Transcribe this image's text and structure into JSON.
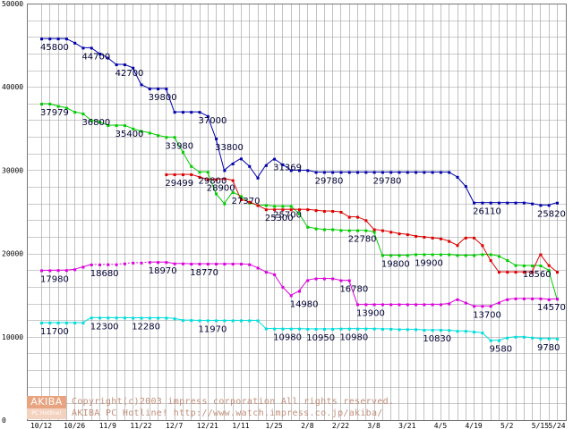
{
  "chart_data": {
    "type": "line",
    "ylim": [
      0,
      50000
    ],
    "yticks": [
      0,
      10000,
      20000,
      30000,
      40000,
      50000
    ],
    "x_labels": [
      "10/12",
      "10/26",
      "11/9",
      "11/22",
      "12/7",
      "12/21",
      "1/11",
      "1/25",
      "2/8",
      "2/22",
      "3/8",
      "3/21",
      "4/5",
      "4/19",
      "5/2",
      "5/15",
      "5/24"
    ],
    "x_label_index": [
      0,
      4,
      8,
      12,
      16,
      20,
      24,
      28,
      32,
      36,
      40,
      44,
      48,
      52,
      56,
      60,
      62
    ],
    "n_points": 63,
    "series": [
      {
        "name": "blue",
        "color": "#0000aa",
        "values": [
          45800,
          45800,
          45800,
          45800,
          45300,
          44700,
          44700,
          44000,
          43500,
          42700,
          42700,
          42300,
          40300,
          39800,
          39800,
          39800,
          37000,
          37000,
          37000,
          37000,
          36500,
          33800,
          30000,
          30800,
          31400,
          30500,
          29100,
          30600,
          31369,
          30700,
          30000,
          30000,
          30000,
          29780,
          29780,
          29780,
          29780,
          29780,
          29780,
          29780,
          29780,
          29780,
          29780,
          29780,
          29780,
          29780,
          29780,
          29780,
          29780,
          29780,
          29200,
          28100,
          26111,
          26110,
          26110,
          26110,
          26110,
          26110,
          26110,
          26000,
          25820,
          25820,
          26100
        ]
      },
      {
        "name": "green",
        "color": "#00cc00",
        "values": [
          37979,
          37979,
          37700,
          37500,
          37000,
          36800,
          36000,
          35800,
          35400,
          35400,
          35400,
          35000,
          34700,
          34500,
          34200,
          33980,
          33980,
          32200,
          30500,
          29800,
          29800,
          27200,
          26000,
          27370,
          26900,
          26100,
          25800,
          25800,
          25700,
          25700,
          25700,
          24800,
          23200,
          23000,
          22900,
          22900,
          22800,
          22780,
          22780,
          22780,
          22600,
          19800,
          19800,
          19800,
          19800,
          19900,
          19900,
          19900,
          19900,
          19900,
          19800,
          19800,
          19800,
          19900,
          19900,
          19700,
          19200,
          18600,
          18560,
          18560,
          18560,
          18000,
          14570
        ]
      },
      {
        "name": "red",
        "color": "#dd0000",
        "values": [
          null,
          null,
          null,
          null,
          null,
          null,
          null,
          null,
          null,
          null,
          null,
          null,
          null,
          null,
          null,
          29499,
          29499,
          29499,
          29499,
          29200,
          28900,
          28900,
          29000,
          28800,
          26500,
          26200,
          25800,
          25300,
          25300,
          25300,
          25300,
          25300,
          25300,
          25200,
          25100,
          25100,
          25000,
          24400,
          24400,
          24000,
          22900,
          22780,
          22600,
          22400,
          22300,
          22100,
          22000,
          21900,
          21800,
          21500,
          21000,
          21900,
          21900,
          21000,
          19200,
          17800,
          17800,
          17800,
          17800,
          17800,
          19900,
          18600,
          17800
        ]
      },
      {
        "name": "magenta",
        "color": "#dd00dd",
        "values": [
          17980,
          17980,
          18000,
          18000,
          18100,
          18400,
          18680,
          18680,
          18700,
          18700,
          18800,
          18900,
          18900,
          18970,
          18970,
          18970,
          18800,
          18800,
          18770,
          18770,
          18770,
          18770,
          18770,
          18770,
          18770,
          18700,
          18300,
          17800,
          17500,
          16000,
          14980,
          15500,
          16800,
          17000,
          17000,
          17000,
          16780,
          16780,
          13900,
          13900,
          13900,
          13900,
          13900,
          13900,
          13900,
          13900,
          13900,
          13900,
          13900,
          14000,
          14500,
          14100,
          13700,
          13700,
          13700,
          14100,
          14500,
          14600,
          14600,
          14600,
          14600,
          14500,
          14570
        ]
      },
      {
        "name": "cyan",
        "color": "#00dddd",
        "values": [
          11700,
          11700,
          11700,
          11700,
          11700,
          11700,
          12300,
          12300,
          12300,
          12300,
          12300,
          12280,
          12280,
          12280,
          12280,
          12280,
          12200,
          12000,
          12000,
          11970,
          11970,
          11970,
          11970,
          11970,
          11970,
          11970,
          11970,
          11000,
          10980,
          10980,
          10980,
          10980,
          10950,
          10950,
          10950,
          10950,
          10980,
          10980,
          10980,
          10980,
          10980,
          10950,
          10950,
          10900,
          10900,
          10900,
          10830,
          10830,
          10830,
          10800,
          10700,
          10700,
          10600,
          10500,
          9580,
          9580,
          9900,
          10000,
          10000,
          9900,
          9800,
          9800,
          9780
        ]
      }
    ],
    "dashed_segments": [
      {
        "series": "magenta",
        "from": 6,
        "to": 13
      }
    ],
    "data_labels": [
      {
        "text": "45800",
        "series": "blue",
        "i": 0
      },
      {
        "text": "44700",
        "series": "blue",
        "i": 5
      },
      {
        "text": "42700",
        "series": "blue",
        "i": 9
      },
      {
        "text": "39800",
        "series": "blue",
        "i": 13
      },
      {
        "text": "37000",
        "series": "blue",
        "i": 19
      },
      {
        "text": "33800",
        "series": "blue",
        "i": 21
      },
      {
        "text": "31369",
        "series": "blue",
        "i": 28
      },
      {
        "text": "29780",
        "series": "blue",
        "i": 33
      },
      {
        "text": "29780",
        "series": "blue",
        "i": 40
      },
      {
        "text": "26110",
        "series": "blue",
        "i": 52
      },
      {
        "text": "25820",
        "series": "blue",
        "i": 60
      },
      {
        "text": "37979",
        "series": "green",
        "i": 0
      },
      {
        "text": "36800",
        "series": "green",
        "i": 5
      },
      {
        "text": "35400",
        "series": "green",
        "i": 9
      },
      {
        "text": "33980",
        "series": "green",
        "i": 15
      },
      {
        "text": "29800",
        "series": "green",
        "i": 19
      },
      {
        "text": "27370",
        "series": "green",
        "i": 23
      },
      {
        "text": "25700",
        "series": "green",
        "i": 28
      },
      {
        "text": "22780",
        "series": "green",
        "i": 37
      },
      {
        "text": "19800",
        "series": "green",
        "i": 41
      },
      {
        "text": "19900",
        "series": "green",
        "i": 45
      },
      {
        "text": "18560",
        "series": "green",
        "i": 58
      },
      {
        "text": "14570",
        "series": "green",
        "i": 62
      },
      {
        "text": "29499",
        "series": "red",
        "i": 15
      },
      {
        "text": "28900",
        "series": "red",
        "i": 20
      },
      {
        "text": "25300",
        "series": "red",
        "i": 27
      },
      {
        "text": "17980",
        "series": "magenta",
        "i": 0
      },
      {
        "text": "18680",
        "series": "magenta",
        "i": 6
      },
      {
        "text": "18970",
        "series": "magenta",
        "i": 13
      },
      {
        "text": "18770",
        "series": "magenta",
        "i": 18
      },
      {
        "text": "14980",
        "series": "magenta",
        "i": 30
      },
      {
        "text": "16780",
        "series": "magenta",
        "i": 36
      },
      {
        "text": "13900",
        "series": "magenta",
        "i": 38
      },
      {
        "text": "13700",
        "series": "magenta",
        "i": 52
      },
      {
        "text": "11700",
        "series": "cyan",
        "i": 0
      },
      {
        "text": "12300",
        "series": "cyan",
        "i": 6
      },
      {
        "text": "12280",
        "series": "cyan",
        "i": 11
      },
      {
        "text": "11970",
        "series": "cyan",
        "i": 19
      },
      {
        "text": "10980",
        "series": "cyan",
        "i": 28
      },
      {
        "text": "10950",
        "series": "cyan",
        "i": 32
      },
      {
        "text": "10980",
        "series": "cyan",
        "i": 36
      },
      {
        "text": "10830",
        "series": "cyan",
        "i": 46
      },
      {
        "text": "9580",
        "series": "cyan",
        "i": 54
      },
      {
        "text": "9780",
        "series": "cyan",
        "i": 62
      }
    ],
    "grid": true
  },
  "footer": {
    "logo_top": "AKIBA",
    "logo_bottom": "PC Hotline!",
    "copyright": "Copyright(c)2003 impress corporation All rights reserved.",
    "site": "AKIBA PC Hotline!  http://www.watch.impress.co.jp/akiba/"
  }
}
